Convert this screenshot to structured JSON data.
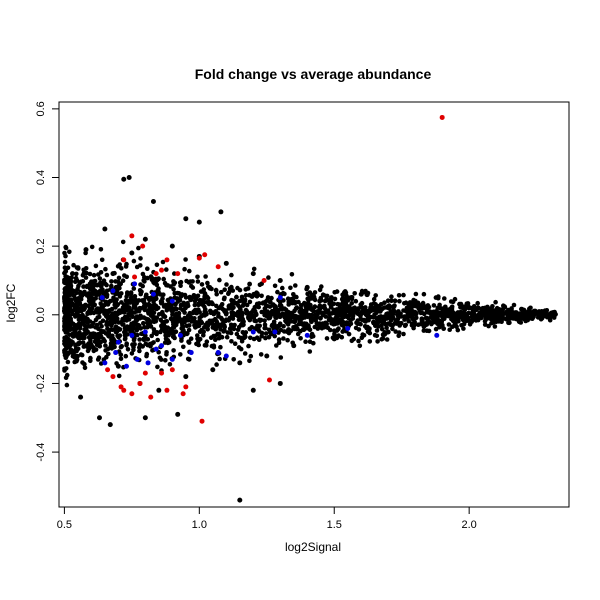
{
  "chart_data": {
    "type": "scatter",
    "title": "Fold change vs average abundance",
    "xlabel": "log2Signal",
    "ylabel": "log2FC",
    "xlim": [
      0.48,
      2.37
    ],
    "ylim": [
      -0.56,
      0.62
    ],
    "xticks": [
      0.5,
      1.0,
      1.5,
      2.0
    ],
    "xtick_labels": [
      "0.5",
      "1.0",
      "1.5",
      "2.0"
    ],
    "yticks": [
      -0.4,
      -0.2,
      0.0,
      0.2,
      0.4,
      0.6
    ],
    "ytick_labels": [
      "-0.4",
      "-0.2",
      "0.0",
      "0.2",
      "0.4",
      "0.6"
    ],
    "grid": false,
    "legend": "none",
    "colors": {
      "background": "#000000",
      "up": "#e00000",
      "down": "#0000e0"
    },
    "series": [
      {
        "color": "#000000",
        "points": [
          [
            0.55,
            0.01
          ],
          [
            0.52,
            -0.02
          ],
          [
            0.6,
            0.05
          ],
          [
            0.62,
            -0.08
          ],
          [
            0.68,
            0.12
          ],
          [
            0.7,
            -0.15
          ],
          [
            0.75,
            0.18
          ],
          [
            0.78,
            -0.2
          ],
          [
            0.8,
            0.22
          ],
          [
            0.85,
            -0.22
          ],
          [
            0.9,
            0.2
          ],
          [
            0.95,
            -0.18
          ],
          [
            1.0,
            0.17
          ],
          [
            1.05,
            -0.16
          ],
          [
            1.1,
            0.15
          ],
          [
            1.15,
            -0.14
          ],
          [
            1.2,
            0.12
          ],
          [
            1.25,
            -0.12
          ],
          [
            1.3,
            0.1
          ],
          [
            1.35,
            -0.09
          ],
          [
            1.4,
            0.08
          ],
          [
            1.5,
            -0.07
          ],
          [
            1.6,
            0.06
          ],
          [
            1.7,
            -0.05
          ],
          [
            1.8,
            0.04
          ],
          [
            1.9,
            -0.03
          ],
          [
            2.0,
            0.02
          ],
          [
            2.1,
            -0.02
          ],
          [
            2.2,
            0.01
          ],
          [
            2.3,
            0.0
          ],
          [
            0.74,
            0.4
          ],
          [
            0.72,
            0.395
          ],
          [
            0.67,
            -0.32
          ],
          [
            1.15,
            -0.54
          ],
          [
            0.83,
            0.33
          ],
          [
            0.65,
            0.25
          ],
          [
            0.95,
            0.28
          ],
          [
            1.0,
            0.27
          ],
          [
            1.08,
            0.3
          ],
          [
            0.58,
            0.19
          ],
          [
            0.56,
            -0.24
          ],
          [
            0.63,
            -0.3
          ],
          [
            0.8,
            -0.3
          ],
          [
            0.92,
            -0.29
          ],
          [
            1.2,
            -0.22
          ],
          [
            1.3,
            -0.2
          ],
          [
            0.53,
            0.12
          ],
          [
            0.54,
            -0.12
          ]
        ]
      },
      {
        "color": "#e00000",
        "points": [
          [
            1.9,
            0.575
          ],
          [
            1.01,
            -0.31
          ],
          [
            0.75,
            0.23
          ],
          [
            0.79,
            0.2
          ],
          [
            0.72,
            0.16
          ],
          [
            0.88,
            0.16
          ],
          [
            1.0,
            0.165
          ],
          [
            1.02,
            0.175
          ],
          [
            1.07,
            0.14
          ],
          [
            1.24,
            0.1
          ],
          [
            0.84,
            0.12
          ],
          [
            0.76,
            0.11
          ],
          [
            0.86,
            0.13
          ],
          [
            0.92,
            0.12
          ],
          [
            0.8,
            -0.17
          ],
          [
            0.86,
            -0.17
          ],
          [
            0.9,
            -0.16
          ],
          [
            0.95,
            -0.21
          ],
          [
            1.26,
            -0.19
          ],
          [
            0.68,
            -0.18
          ],
          [
            0.72,
            -0.22
          ],
          [
            0.75,
            -0.23
          ],
          [
            0.78,
            -0.2
          ],
          [
            0.82,
            -0.24
          ],
          [
            0.88,
            -0.22
          ],
          [
            0.66,
            -0.16
          ],
          [
            0.94,
            -0.23
          ],
          [
            0.71,
            -0.21
          ]
        ]
      },
      {
        "color": "#0000e0",
        "points": [
          [
            1.88,
            -0.06
          ],
          [
            1.55,
            -0.04
          ],
          [
            1.4,
            -0.06
          ],
          [
            1.3,
            0.05
          ],
          [
            1.28,
            -0.05
          ],
          [
            1.2,
            -0.05
          ],
          [
            1.1,
            -0.12
          ],
          [
            1.07,
            -0.11
          ],
          [
            0.97,
            -0.11
          ],
          [
            0.9,
            0.04
          ],
          [
            0.83,
            0.06
          ],
          [
            0.76,
            0.09
          ],
          [
            0.68,
            0.07
          ],
          [
            0.64,
            0.05
          ],
          [
            0.65,
            -0.14
          ],
          [
            0.7,
            -0.08
          ],
          [
            0.75,
            -0.06
          ],
          [
            0.8,
            -0.05
          ],
          [
            0.84,
            -0.1
          ],
          [
            0.86,
            -0.09
          ],
          [
            0.9,
            -0.13
          ],
          [
            0.93,
            -0.06
          ],
          [
            0.77,
            -0.13
          ],
          [
            0.73,
            -0.15
          ],
          [
            0.81,
            -0.14
          ],
          [
            0.69,
            -0.11
          ]
        ]
      }
    ]
  }
}
